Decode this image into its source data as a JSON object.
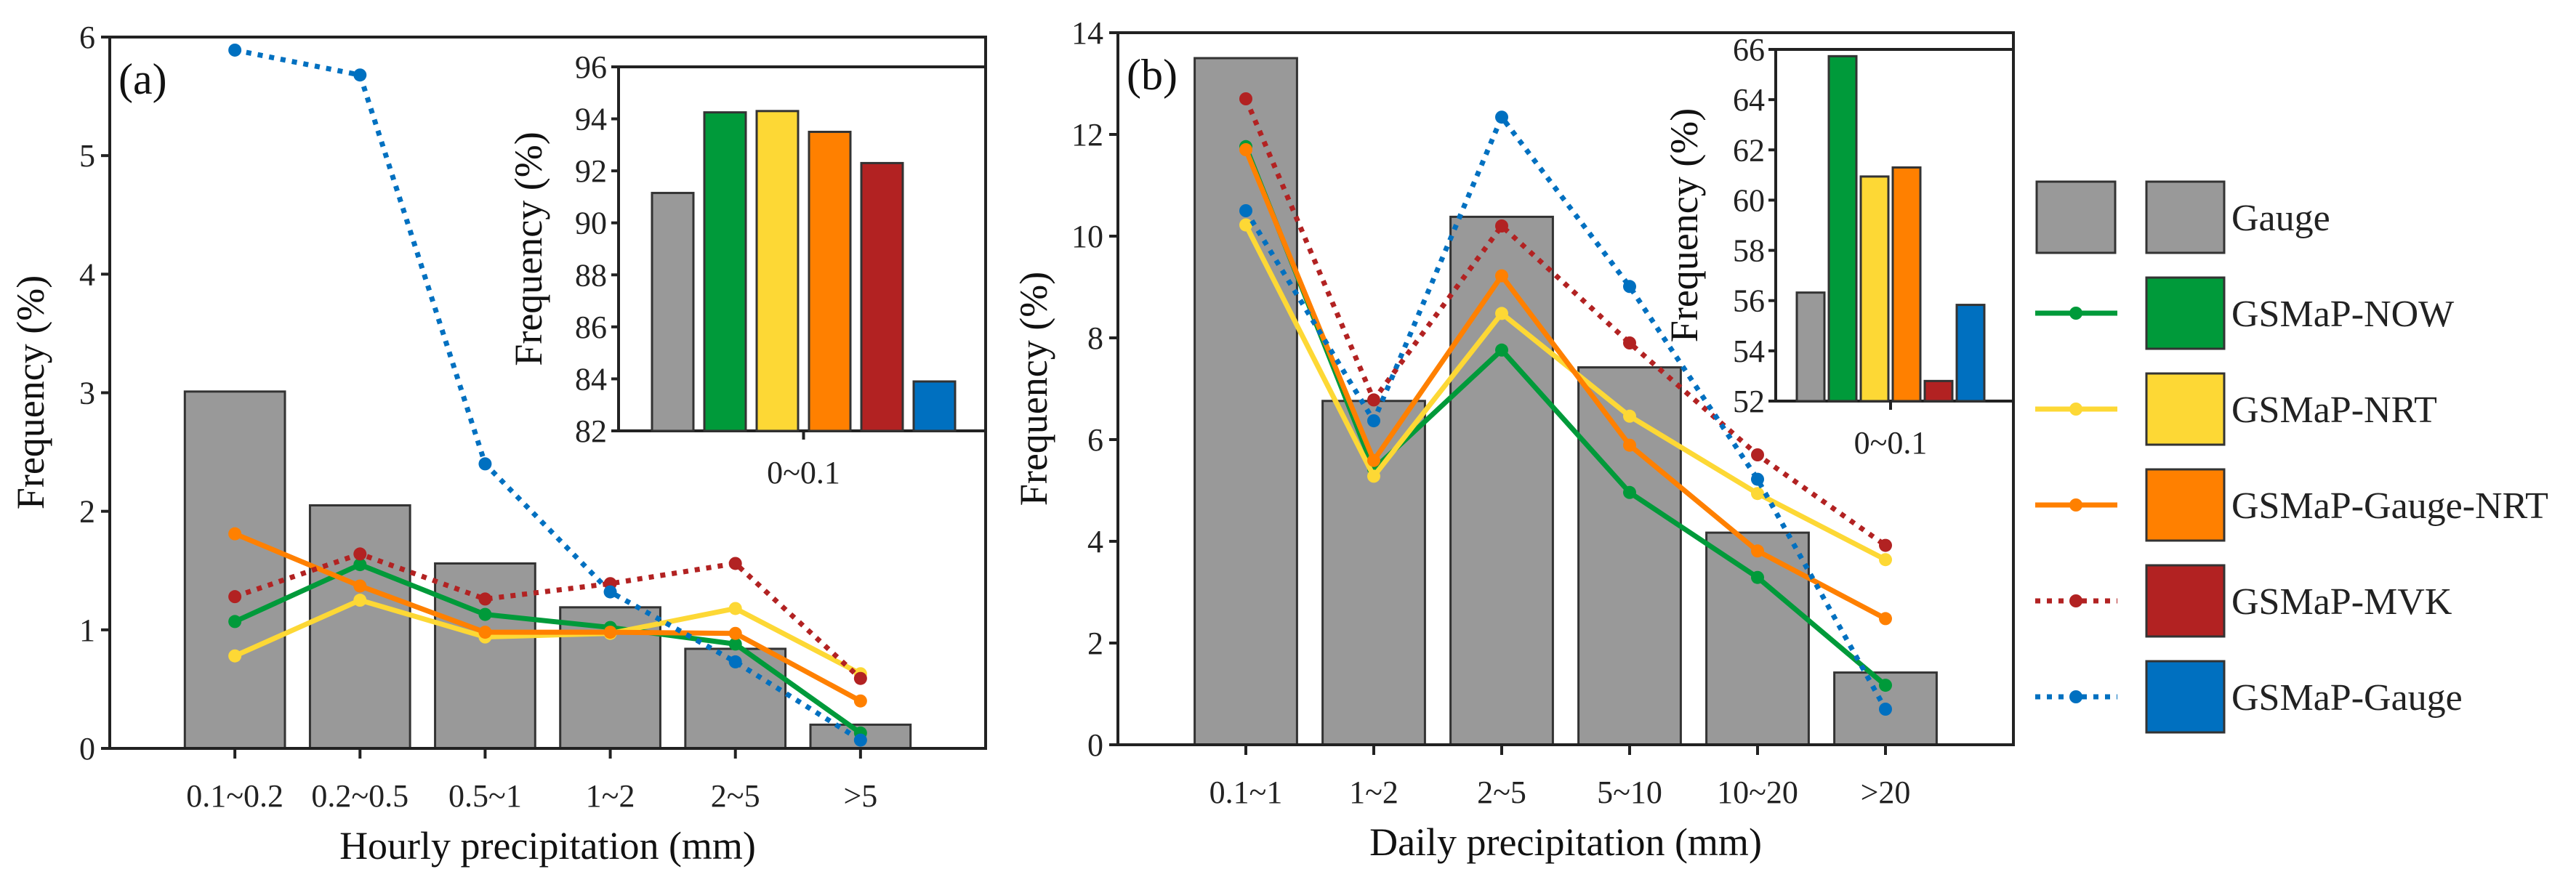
{
  "colors": {
    "Gauge": "#999999",
    "GSMaP-NOW": "#009A3A",
    "GSMaP-NRT": "#FDD835",
    "GSMaP-Gauge-NRT": "#FF8000",
    "GSMaP-MVK": "#B22222",
    "GSMaP-Gauge": "#0070C0"
  },
  "legend": {
    "items": [
      {
        "label": "Gauge",
        "style": "bar"
      },
      {
        "label": "GSMaP-NOW",
        "style": "solid"
      },
      {
        "label": "GSMaP-NRT",
        "style": "solid"
      },
      {
        "label": "GSMaP-Gauge-NRT",
        "style": "solid"
      },
      {
        "label": "GSMaP-MVK",
        "style": "dotted"
      },
      {
        "label": "GSMaP-Gauge",
        "style": "dotted"
      }
    ]
  },
  "chart_data": [
    {
      "type": "bar+line",
      "panel_label": "(a)",
      "xlabel": "Hourly precipitation (mm)",
      "ylabel": "Frequency (%)",
      "ylim": [
        0,
        6
      ],
      "yticks": [
        "0",
        "1",
        "2",
        "3",
        "4",
        "5",
        "6"
      ],
      "categories": [
        "0.1~0.2",
        "0.2~0.5",
        "0.5~1",
        "1~2",
        "2~5",
        ">5"
      ],
      "bars": {
        "name": "Gauge",
        "values": [
          3.01,
          2.05,
          1.56,
          1.19,
          0.84,
          0.2
        ]
      },
      "series": [
        {
          "name": "GSMaP-NOW",
          "values": [
            1.07,
            1.55,
            1.13,
            1.02,
            0.88,
            0.13
          ]
        },
        {
          "name": "GSMaP-NRT",
          "values": [
            0.78,
            1.25,
            0.94,
            0.97,
            1.18,
            0.63
          ]
        },
        {
          "name": "GSMaP-Gauge-NRT",
          "values": [
            1.81,
            1.37,
            0.98,
            0.98,
            0.97,
            0.4
          ]
        },
        {
          "name": "GSMaP-MVK",
          "values": [
            1.28,
            1.64,
            1.26,
            1.39,
            1.56,
            0.59
          ]
        },
        {
          "name": "GSMaP-Gauge",
          "values": [
            5.89,
            5.68,
            2.4,
            1.32,
            0.73,
            0.07
          ]
        }
      ],
      "inset": {
        "type": "bar",
        "category": "0~0.1",
        "ylabel": "Frequency (%)",
        "ylim": [
          82,
          96
        ],
        "yticks": [
          "82",
          "84",
          "86",
          "88",
          "90",
          "92",
          "94",
          "96"
        ],
        "values": [
          {
            "name": "Gauge",
            "value": 91.15
          },
          {
            "name": "GSMaP-NOW",
            "value": 94.25
          },
          {
            "name": "GSMaP-NRT",
            "value": 94.3
          },
          {
            "name": "GSMaP-Gauge-NRT",
            "value": 93.5
          },
          {
            "name": "GSMaP-MVK",
            "value": 92.3
          },
          {
            "name": "GSMaP-Gauge",
            "value": 83.9
          }
        ]
      }
    },
    {
      "type": "bar+line",
      "panel_label": "(b)",
      "xlabel": "Daily precipitation (mm)",
      "ylabel": "Frequency (%)",
      "ylim": [
        0,
        14
      ],
      "yticks": [
        "0",
        "2",
        "4",
        "6",
        "8",
        "10",
        "12",
        "14"
      ],
      "categories": [
        "0.1~1",
        "1~2",
        "2~5",
        "5~10",
        "10~20",
        ">20"
      ],
      "bars": {
        "name": "Gauge",
        "values": [
          13.5,
          6.76,
          10.38,
          7.42,
          4.17,
          1.42
        ]
      },
      "series": [
        {
          "name": "GSMaP-NOW",
          "values": [
            11.76,
            5.42,
            7.76,
            4.96,
            3.29,
            1.17
          ]
        },
        {
          "name": "GSMaP-NRT",
          "values": [
            10.22,
            5.28,
            8.48,
            6.46,
            4.94,
            3.64
          ]
        },
        {
          "name": "GSMaP-Gauge-NRT",
          "values": [
            11.7,
            5.59,
            9.22,
            5.89,
            3.81,
            2.48
          ]
        },
        {
          "name": "GSMaP-MVK",
          "values": [
            12.7,
            6.78,
            10.2,
            7.9,
            5.7,
            3.92
          ]
        },
        {
          "name": "GSMaP-Gauge",
          "values": [
            10.5,
            6.37,
            12.34,
            9.01,
            5.22,
            0.7
          ]
        }
      ],
      "inset": {
        "type": "bar",
        "category": "0~0.1",
        "ylabel": "Frequency (%)",
        "ylim": [
          52,
          66
        ],
        "yticks": [
          "52",
          "54",
          "56",
          "58",
          "60",
          "62",
          "64",
          "66"
        ],
        "values": [
          {
            "name": "Gauge",
            "value": 56.32
          },
          {
            "name": "GSMaP-NOW",
            "value": 65.73
          },
          {
            "name": "GSMaP-NRT",
            "value": 60.94
          },
          {
            "name": "GSMaP-Gauge-NRT",
            "value": 61.3
          },
          {
            "name": "GSMaP-MVK",
            "value": 52.8
          },
          {
            "name": "GSMaP-Gauge",
            "value": 55.83
          }
        ]
      }
    }
  ]
}
